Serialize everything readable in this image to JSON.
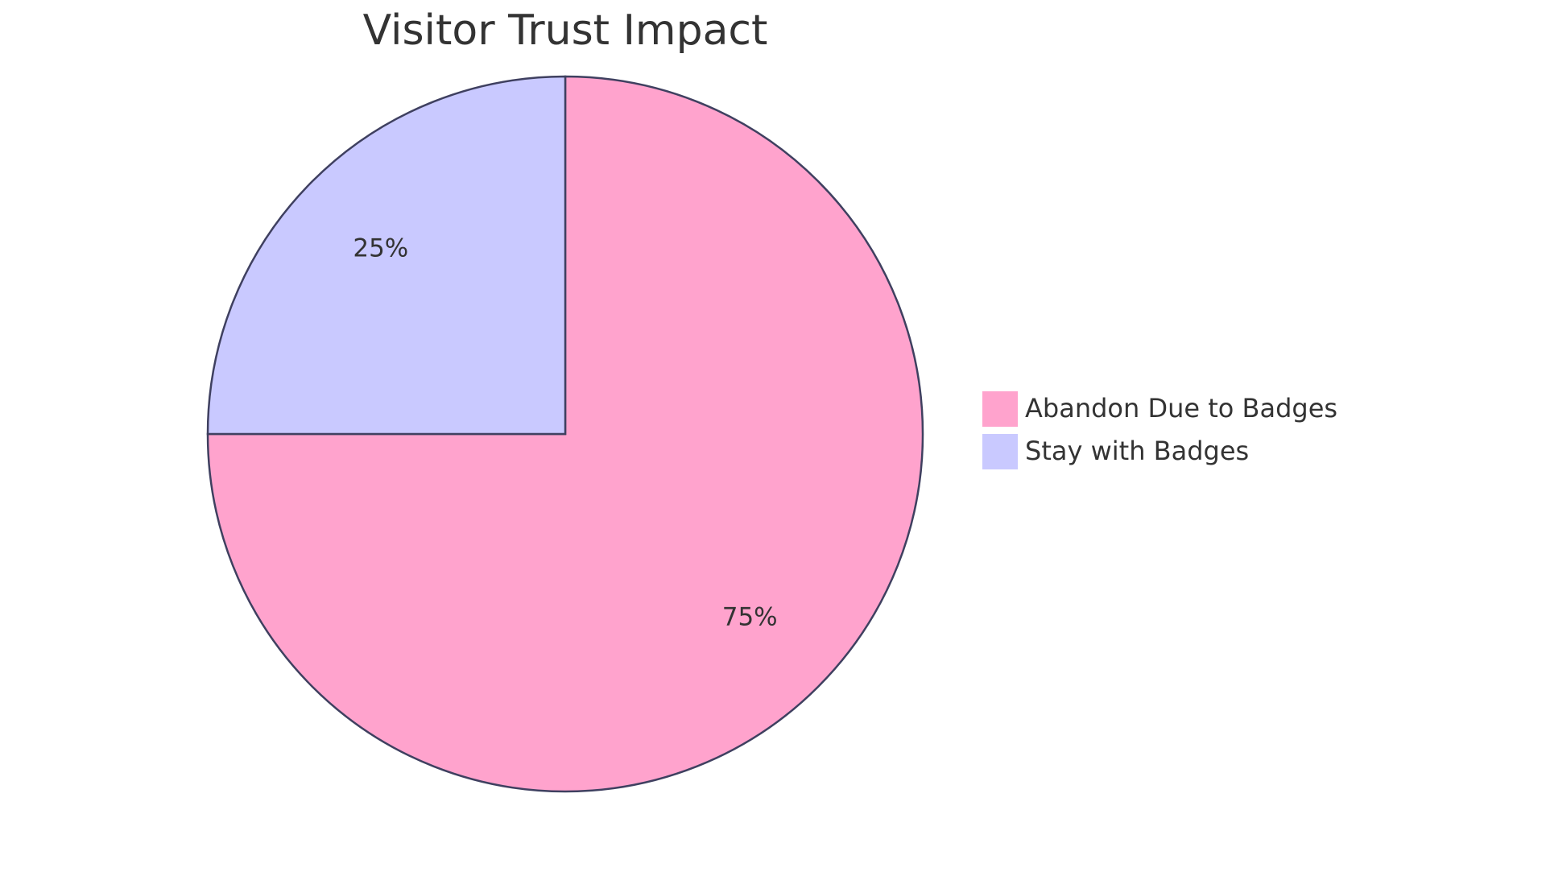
{
  "chart_data": {
    "type": "pie",
    "title": "Visitor Trust Impact",
    "categories": [
      "Abandon Due to Badges",
      "Stay with Badges"
    ],
    "values": [
      75,
      25
    ],
    "value_labels": [
      "75%",
      "25%"
    ],
    "colors": [
      "#ffa3cd",
      "#c9c9ff"
    ],
    "legend": "right"
  }
}
